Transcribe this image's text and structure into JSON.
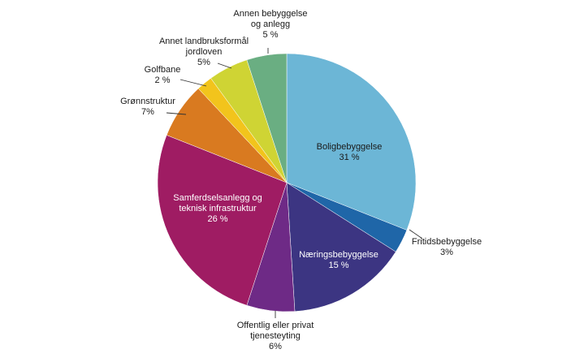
{
  "chart_data": {
    "type": "pie",
    "start_angle_deg": 0,
    "direction": "clockwise",
    "slices": [
      {
        "label": [
          "Boligbebyggelse",
          "31 %"
        ],
        "value": 31,
        "color": "#6cb6d6",
        "label_pos": "inside",
        "text": "dark"
      },
      {
        "label": [
          "Fritidsbebyggelse",
          "3%"
        ],
        "value": 3,
        "color": "#1f66a8",
        "label_pos": "outside"
      },
      {
        "label": [
          "Næringsbebyggelse",
          "15 %"
        ],
        "value": 15,
        "color": "#3c3582",
        "label_pos": "inside",
        "text": "light"
      },
      {
        "label": [
          "Offentlig eller privat",
          "tjenesteyting",
          "6%"
        ],
        "value": 6,
        "color": "#6e2a86",
        "label_pos": "outside"
      },
      {
        "label": [
          "Samferdselsanlegg og",
          "teknisk infrastruktur",
          "26 %"
        ],
        "value": 26,
        "color": "#9f1c63",
        "label_pos": "inside",
        "text": "light"
      },
      {
        "label": [
          "Grønnstruktur",
          "7%"
        ],
        "value": 7,
        "color": "#d97a20",
        "label_pos": "outside"
      },
      {
        "label": [
          "Golfbane",
          "2 %"
        ],
        "value": 2,
        "color": "#f2c41c",
        "label_pos": "outside"
      },
      {
        "label": [
          "Annet landbruksformål",
          "jordloven",
          "5%"
        ],
        "value": 5,
        "color": "#cfd434",
        "label_pos": "outside"
      },
      {
        "label": [
          "Annen bebyggelse",
          "og anlegg",
          "5 %"
        ],
        "value": 5,
        "color": "#6aae82",
        "label_pos": "outside"
      }
    ]
  }
}
